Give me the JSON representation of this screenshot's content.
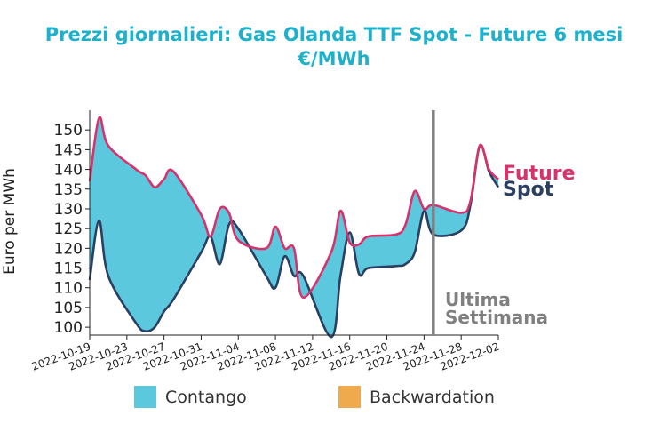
{
  "chart_data": {
    "type": "area",
    "title_line1": "Prezzi giornalieri: Gas Olanda TTF Spot - Future 6 mesi",
    "title_line2": "€/MWh",
    "ylabel": "Euro per MWh",
    "xlabel": "",
    "ylim": [
      98,
      155
    ],
    "yticks": [
      100,
      105,
      110,
      115,
      120,
      125,
      130,
      135,
      140,
      145,
      150
    ],
    "xlim": [
      "2022-10-19",
      "2022-12-02"
    ],
    "xticks": [
      "2022-10-19",
      "2022-10-23",
      "2022-10-27",
      "2022-10-31",
      "2022-11-04",
      "2022-11-08",
      "2022-11-12",
      "2022-11-16",
      "2022-11-20",
      "2022-11-24",
      "2022-11-28",
      "2022-12-02"
    ],
    "grid": false,
    "series": [
      {
        "name": "Future",
        "color": "#d6336c",
        "x": [
          "2022-10-19",
          "2022-10-20",
          "2022-10-21",
          "2022-10-24",
          "2022-10-25",
          "2022-10-26",
          "2022-10-27",
          "2022-10-28",
          "2022-10-31",
          "2022-11-01",
          "2022-11-02",
          "2022-11-03",
          "2022-11-04",
          "2022-11-07",
          "2022-11-08",
          "2022-11-09",
          "2022-11-10",
          "2022-11-11",
          "2022-11-14",
          "2022-11-15",
          "2022-11-16",
          "2022-11-17",
          "2022-11-18",
          "2022-11-21",
          "2022-11-22",
          "2022-11-23",
          "2022-11-24",
          "2022-11-25",
          "2022-11-28",
          "2022-11-29",
          "2022-11-30",
          "2022-12-01",
          "2022-12-02"
        ],
        "values": [
          137,
          153,
          146,
          140,
          138.5,
          135.5,
          137.5,
          139.5,
          128.5,
          123,
          130,
          129,
          122,
          120,
          125.5,
          120,
          120,
          107.5,
          119,
          129.5,
          121.5,
          121,
          123,
          123.5,
          126,
          134.5,
          130,
          131,
          129,
          132,
          146,
          140,
          137.5
        ]
      },
      {
        "name": "Spot",
        "color": "#2b3f62",
        "x": [
          "2022-10-19",
          "2022-10-20",
          "2022-10-21",
          "2022-10-24",
          "2022-10-25",
          "2022-10-26",
          "2022-10-27",
          "2022-10-28",
          "2022-10-31",
          "2022-11-01",
          "2022-11-02",
          "2022-11-03",
          "2022-11-04",
          "2022-11-07",
          "2022-11-08",
          "2022-11-09",
          "2022-11-10",
          "2022-11-11",
          "2022-11-14",
          "2022-11-15",
          "2022-11-16",
          "2022-11-17",
          "2022-11-18",
          "2022-11-21",
          "2022-11-22",
          "2022-11-23",
          "2022-11-24",
          "2022-11-25",
          "2022-11-28",
          "2022-11-29",
          "2022-11-30",
          "2022-12-01",
          "2022-12-02"
        ],
        "values": [
          112,
          127,
          113,
          101,
          99,
          100,
          104,
          107,
          119,
          123,
          116,
          126,
          125,
          113,
          110,
          118,
          113,
          113,
          97.5,
          113,
          124,
          113.5,
          115,
          115.5,
          116,
          119,
          129.5,
          123.5,
          124.5,
          131,
          146,
          139.5,
          135.5
        ]
      }
    ],
    "legend": {
      "placement": "bottom",
      "items": [
        {
          "label": "Contango",
          "color": "#5bc8dd"
        },
        {
          "label": "Backwardation",
          "color": "#eeaa4c"
        }
      ]
    },
    "annotations": {
      "future_label": "Future",
      "spot_label": "Spot",
      "week_line1": "Ultima",
      "week_line2": "Settimana",
      "week_line_x": "2022-11-25",
      "week_line_color": "#808080"
    }
  }
}
